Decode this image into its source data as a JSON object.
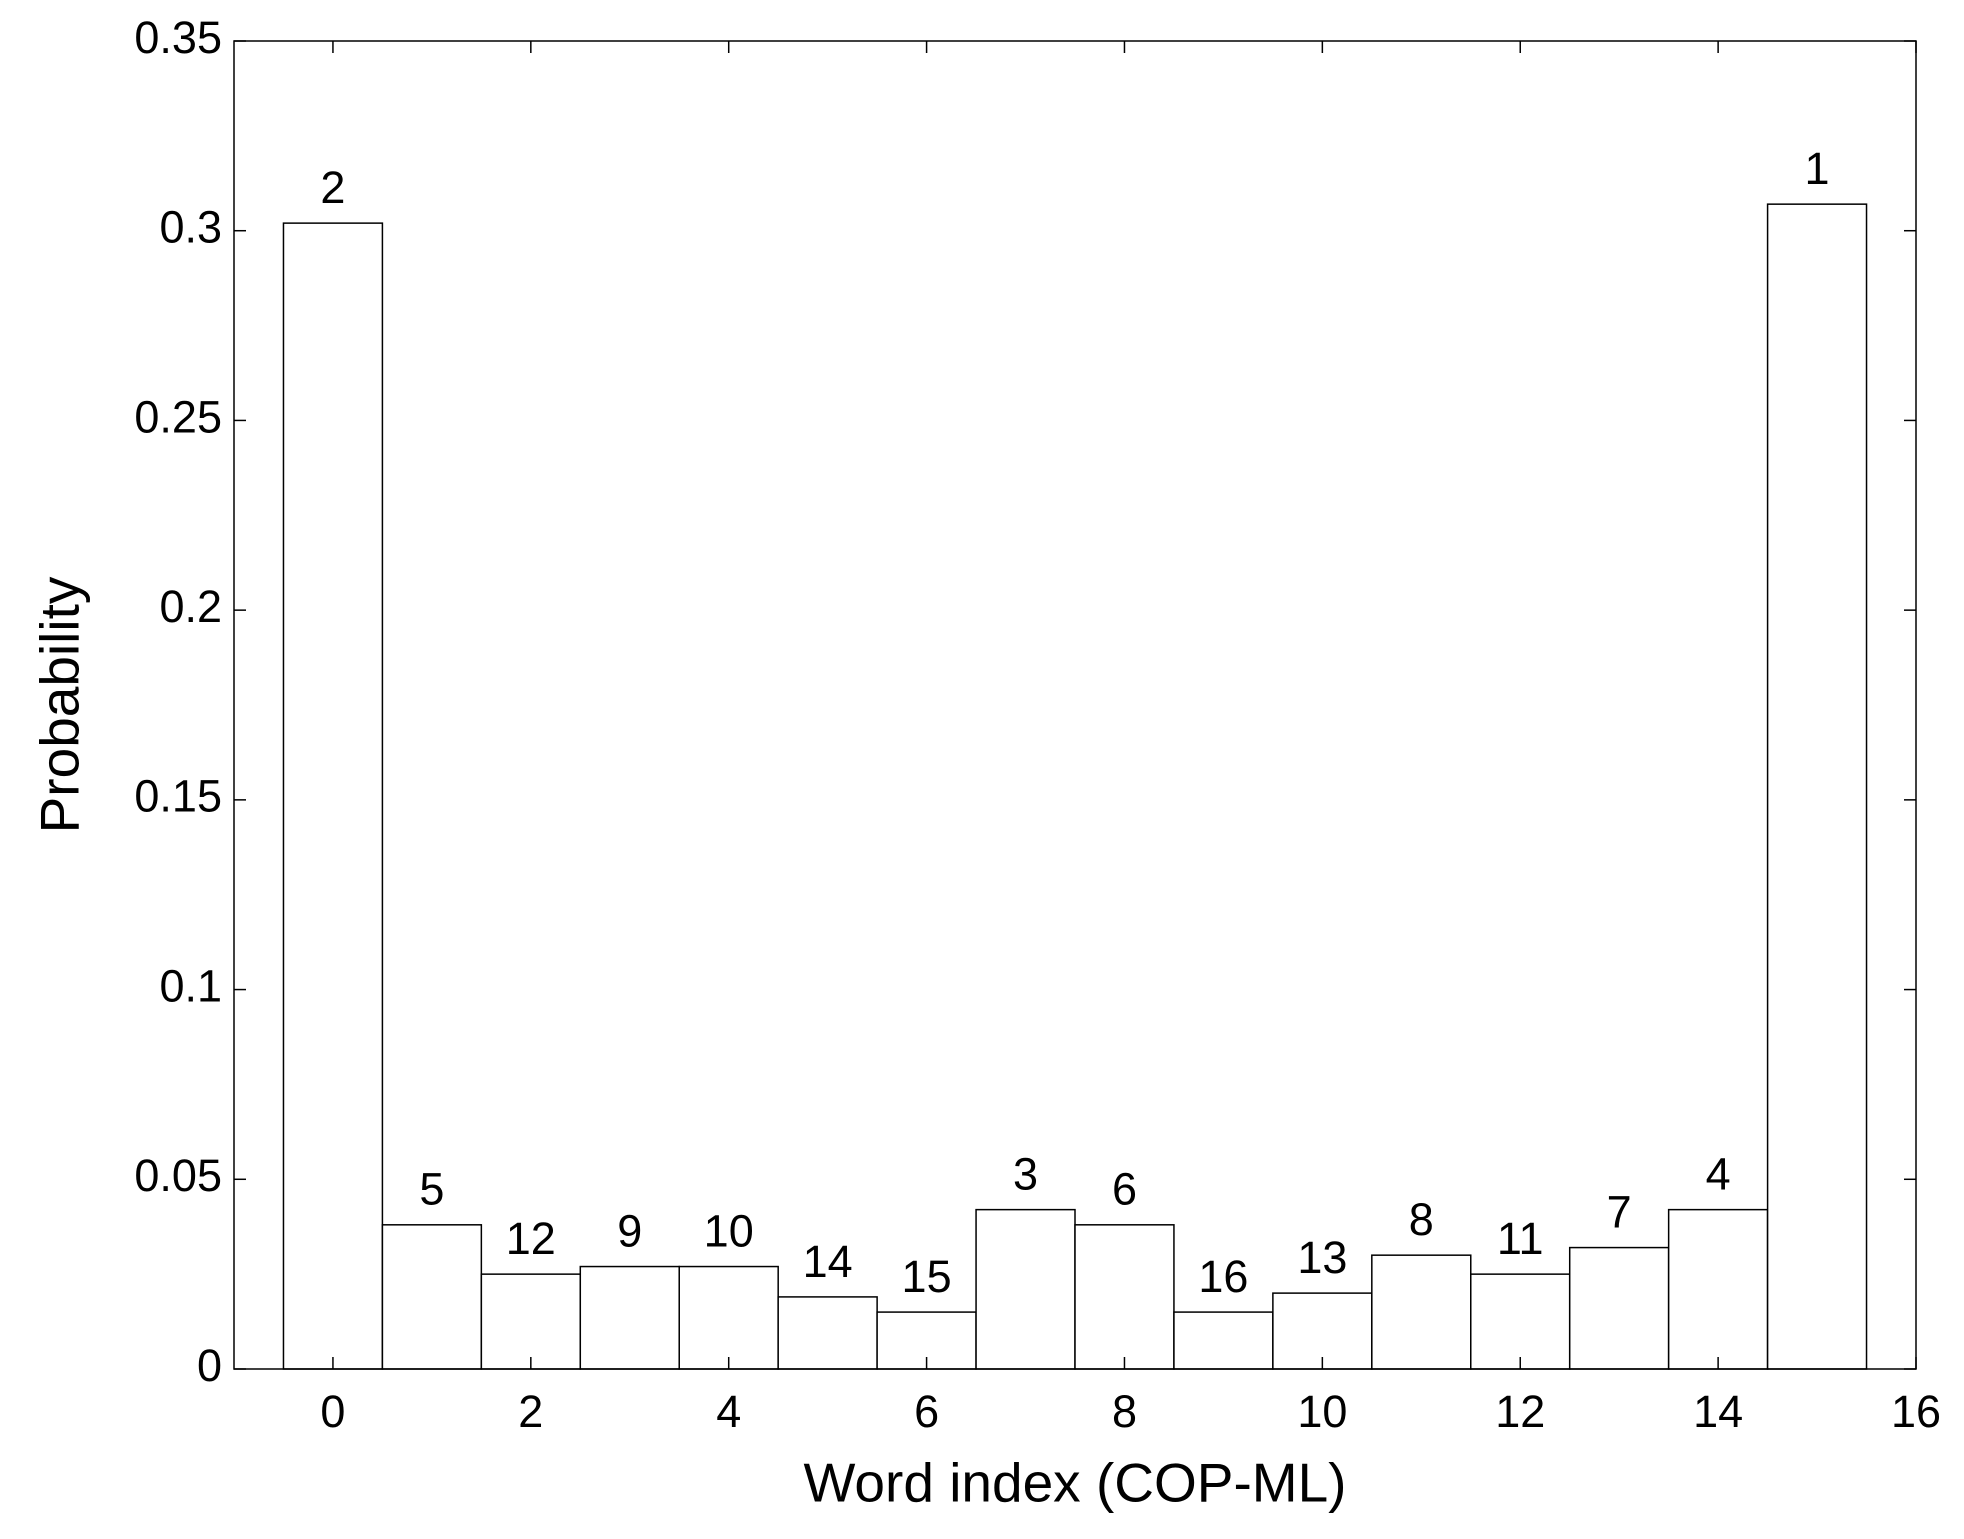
{
  "chart_data": {
    "type": "bar",
    "x": [
      0,
      1,
      2,
      3,
      4,
      5,
      6,
      7,
      8,
      9,
      10,
      11,
      12,
      13,
      14,
      15
    ],
    "values": [
      0.302,
      0.038,
      0.025,
      0.027,
      0.027,
      0.019,
      0.015,
      0.042,
      0.038,
      0.015,
      0.02,
      0.03,
      0.025,
      0.032,
      0.042,
      0.307
    ],
    "bar_labels": [
      "2",
      "5",
      "12",
      "9",
      "10",
      "14",
      "15",
      "3",
      "6",
      "16",
      "13",
      "8",
      "11",
      "7",
      "4",
      "1"
    ],
    "color": "#ffffff",
    "x_label": "Word index (COP-ML)",
    "y_label": "Probability",
    "xlim": [
      -1,
      16
    ],
    "xticks": [
      0,
      2,
      4,
      6,
      8,
      10,
      12,
      14,
      16
    ],
    "ylim": [
      0,
      0.35
    ],
    "yticks": [
      0,
      0.05,
      0.1,
      0.15,
      0.2,
      0.25,
      0.3,
      0.35
    ],
    "grid": false
  }
}
